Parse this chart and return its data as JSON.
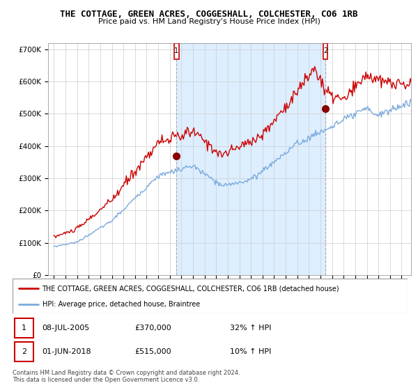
{
  "title": "THE COTTAGE, GREEN ACRES, COGGESHALL, COLCHESTER, CO6 1RB",
  "subtitle": "Price paid vs. HM Land Registry's House Price Index (HPI)",
  "legend_line1": "THE COTTAGE, GREEN ACRES, COGGESHALL, COLCHESTER, CO6 1RB (detached house)",
  "legend_line2": "HPI: Average price, detached house, Braintree",
  "sale1_date": "08-JUL-2005",
  "sale1_price": "£370,000",
  "sale1_hpi": "32% ↑ HPI",
  "sale2_date": "01-JUN-2018",
  "sale2_price": "£515,000",
  "sale2_hpi": "10% ↑ HPI",
  "footnote": "Contains HM Land Registry data © Crown copyright and database right 2024.\nThis data is licensed under the Open Government Licence v3.0.",
  "red_color": "#cc0000",
  "blue_color": "#7aaadd",
  "shade_color": "#ddeeff",
  "marker_box_color": "#cc0000",
  "background_color": "#ffffff",
  "grid_color": "#cccccc",
  "vline_color": "#aaaaaa",
  "ylim_min": 0,
  "ylim_max": 720000,
  "yticks": [
    0,
    100000,
    200000,
    300000,
    400000,
    500000,
    600000,
    700000
  ],
  "ytick_labels": [
    "£0",
    "£100K",
    "£200K",
    "£300K",
    "£400K",
    "£500K",
    "£600K",
    "£700K"
  ],
  "sale1_x": 2005.583,
  "sale1_y": 370000,
  "sale2_x": 2018.417,
  "sale2_y": 515000,
  "xlim_min": 1994.5,
  "xlim_max": 2025.8
}
